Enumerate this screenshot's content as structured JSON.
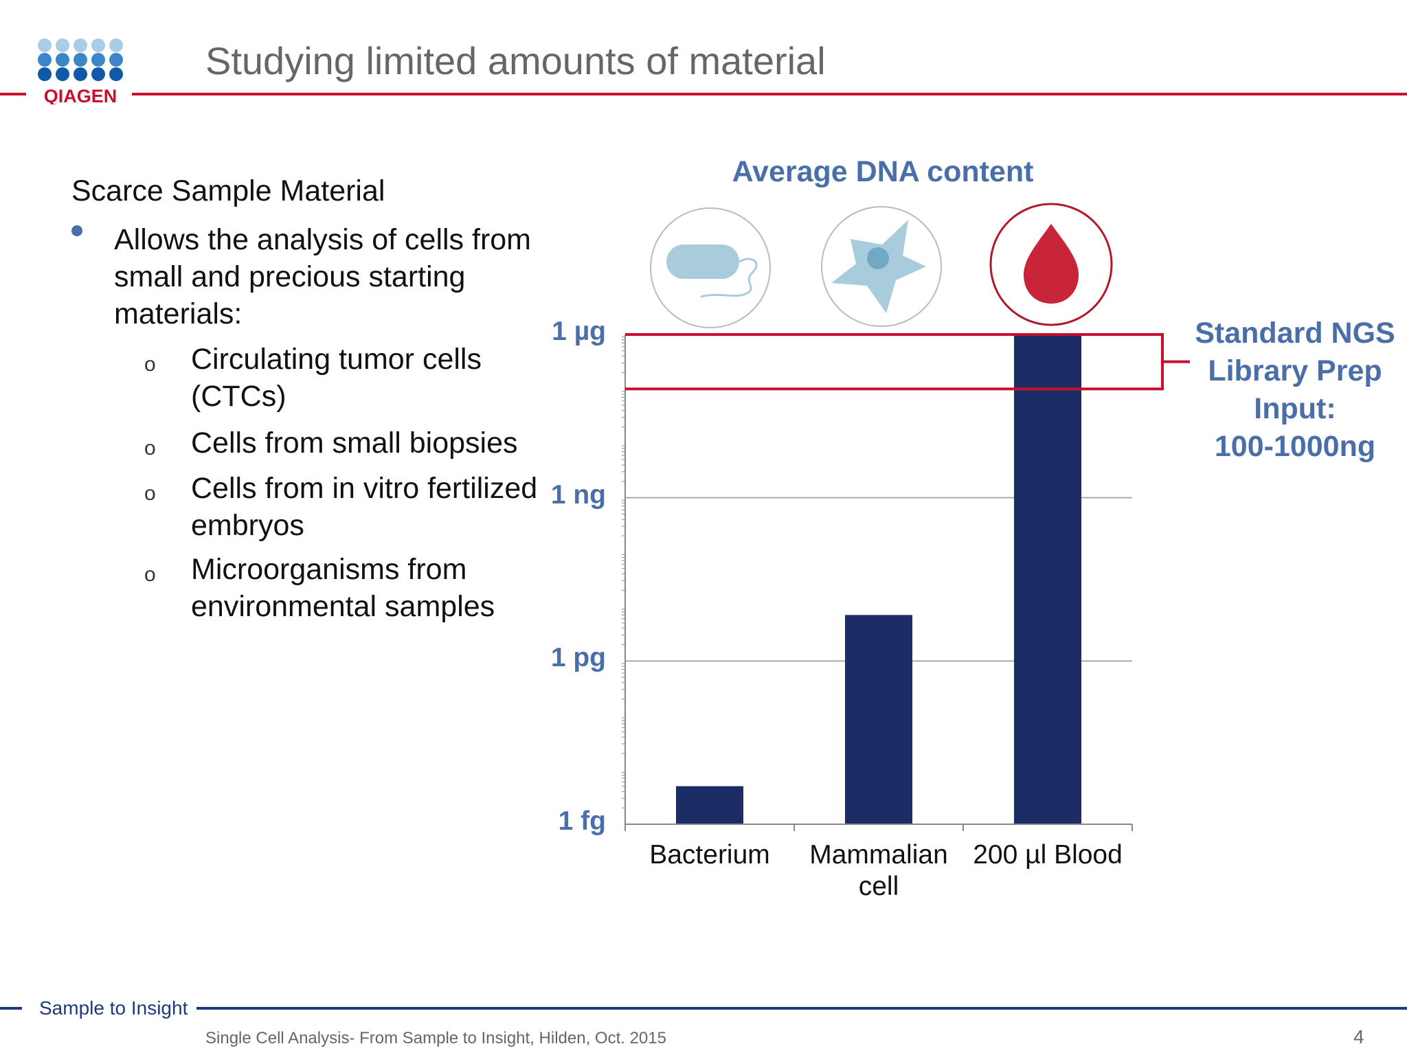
{
  "header": {
    "title": "Studying limited amounts of material",
    "logo_text": "QIAGEN",
    "accent_color": "#c8102e"
  },
  "left": {
    "subtitle": "Scarce Sample Material",
    "bullet": "Allows the analysis of cells from small and precious starting materials:",
    "sub_marker": "o",
    "sub_items": [
      "Circulating tumor cells (CTCs)",
      "Cells from small biopsies",
      "Cells from in vitro fertilized embryos",
      "Microorganisms from environmental samples"
    ]
  },
  "icons": [
    "bacterium-icon",
    "mammalian-cell-icon",
    "blood-drop-icon"
  ],
  "annotation": {
    "label_lines": [
      "Standard NGS",
      "Library Prep",
      "Input:",
      "100-1000ng"
    ]
  },
  "chart_data": {
    "type": "bar",
    "title": "Average DNA content",
    "scale": "log",
    "categories": [
      "Bacterium",
      "Mammalian cell",
      "200 µl Blood"
    ],
    "category_lines": [
      [
        "Bacterium"
      ],
      [
        "Mammalian",
        "cell"
      ],
      [
        "200 µl Blood"
      ]
    ],
    "values_g": [
      5e-15,
      7e-12,
      1e-06
    ],
    "y_ticks": [
      {
        "label": "1 fg",
        "value_g": 1e-15
      },
      {
        "label": "1 pg",
        "value_g": 1e-12
      },
      {
        "label": "1 ng",
        "value_g": 1e-09
      },
      {
        "label": "1 µg",
        "value_g": 1e-06
      }
    ],
    "ylim_g": [
      1e-15,
      1e-06
    ],
    "highlight_range_g": [
      1e-07,
      1e-06
    ],
    "bar_color": "#1c2d66",
    "grid": true
  },
  "footer": {
    "brand": "Sample to Insight",
    "text": "Single Cell Analysis- From Sample to Insight, Hilden, Oct. 2015",
    "page": "4",
    "line_color": "#1f3a7a"
  }
}
